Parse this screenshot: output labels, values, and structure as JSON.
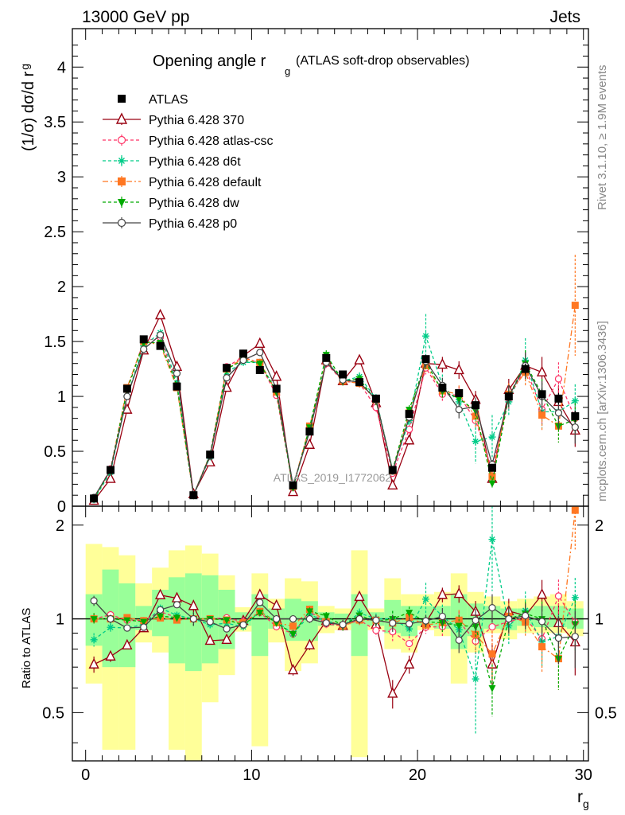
{
  "header": {
    "left": "13000 GeV pp",
    "right": "Jets"
  },
  "title": {
    "main": "Opening angle r",
    "sub": "g",
    "suffix": "(ATLAS soft-drop observables)"
  },
  "side_labels": {
    "version": "Rivet 3.1.10, ≥ 1.9M events",
    "site": "mcplots.cern.ch [arXiv:1306.3436]"
  },
  "watermark": "ATLAS_2019_I1772062",
  "ylabel_main": "(1/σ) dσ/d r",
  "ylabel_main_sub": "g",
  "ylabel_ratio": "Ratio to ATLAS",
  "xlabel": "r",
  "xlabel_sub": "g",
  "colors": {
    "yellow_band": "#ffff99",
    "green_band": "#99ff99"
  },
  "chart_data": {
    "type": "line",
    "x": [
      0.5,
      1.5,
      2.5,
      3.5,
      4.5,
      5.5,
      6.5,
      7.5,
      8.5,
      9.5,
      10.5,
      11.5,
      12.5,
      13.5,
      14.5,
      15.5,
      16.5,
      17.5,
      18.5,
      19.5,
      20.5,
      21.5,
      22.5,
      23.5,
      24.5,
      25.5,
      26.5,
      27.5,
      28.5,
      29.5
    ],
    "xlim": [
      -0.8,
      30.3
    ],
    "main_ylim": [
      0,
      4.35
    ],
    "ratio_ylim": [
      0.35,
      2.3
    ],
    "x_ticks": [
      0,
      10,
      20,
      30
    ],
    "main_y_ticks": [
      0,
      0.5,
      1,
      1.5,
      2,
      2.5,
      3,
      3.5,
      4
    ],
    "main_y_tick_labels": [
      "0",
      "0.5",
      "1",
      "1.5",
      "2",
      "2.5",
      "3",
      "3.5",
      "4"
    ],
    "ratio_y_ticks": [
      0.5,
      1,
      2
    ],
    "ratio_y_tick_labels": [
      "0.5",
      "1",
      "2"
    ],
    "ratio_band_yellow": [
      [
        0.62,
        1.74
      ],
      [
        0.38,
        1.7
      ],
      [
        0.38,
        1.6
      ],
      [
        0.84,
        1.3
      ],
      [
        0.78,
        1.46
      ],
      [
        0.38,
        1.66
      ],
      [
        0.32,
        1.72
      ],
      [
        0.54,
        1.62
      ],
      [
        0.66,
        1.38
      ],
      [
        0.91,
        1.09
      ],
      [
        0.39,
        1.4
      ],
      [
        0.84,
        1.16
      ],
      [
        0.68,
        1.35
      ],
      [
        0.72,
        1.32
      ],
      [
        0.9,
        1.1
      ],
      [
        0.92,
        1.08
      ],
      [
        0.36,
        1.66
      ],
      [
        0.92,
        1.08
      ],
      [
        0.8,
        1.35
      ],
      [
        0.78,
        1.2
      ],
      [
        0.92,
        1.2
      ],
      [
        0.88,
        1.22
      ],
      [
        0.62,
        1.4
      ],
      [
        0.78,
        1.22
      ],
      [
        0.9,
        1.18
      ],
      [
        0.86,
        1.14
      ],
      [
        0.9,
        1.16
      ],
      [
        0.9,
        1.18
      ],
      [
        0.9,
        1.2
      ],
      [
        0.88,
        1.14
      ]
    ],
    "ratio_band_green": [
      [
        0.82,
        1.2
      ],
      [
        0.7,
        1.44
      ],
      [
        0.7,
        1.3
      ],
      [
        0.92,
        1.1
      ],
      [
        0.88,
        1.24
      ],
      [
        0.72,
        1.36
      ],
      [
        0.68,
        1.4
      ],
      [
        0.72,
        1.38
      ],
      [
        0.8,
        1.24
      ],
      [
        0.95,
        1.05
      ],
      [
        0.76,
        1.2
      ],
      [
        0.93,
        1.08
      ],
      [
        0.85,
        1.16
      ],
      [
        0.85,
        1.14
      ],
      [
        0.95,
        1.05
      ],
      [
        0.96,
        1.04
      ],
      [
        0.76,
        1.2
      ],
      [
        0.95,
        1.05
      ],
      [
        0.9,
        1.15
      ],
      [
        0.88,
        1.1
      ],
      [
        0.95,
        1.1
      ],
      [
        0.93,
        1.1
      ],
      [
        0.8,
        1.2
      ],
      [
        0.88,
        1.12
      ],
      [
        0.93,
        1.1
      ],
      [
        0.92,
        1.08
      ],
      [
        0.95,
        1.08
      ],
      [
        0.94,
        1.1
      ],
      [
        0.94,
        1.1
      ],
      [
        0.93,
        1.08
      ]
    ],
    "data_series": {
      "name": "ATLAS",
      "color": "#000000",
      "marker": "square",
      "values": [
        0.07,
        0.33,
        1.07,
        1.52,
        1.46,
        1.09,
        0.1,
        0.47,
        1.26,
        1.39,
        1.24,
        1.07,
        0.19,
        0.68,
        1.35,
        1.2,
        1.13,
        0.98,
        0.33,
        0.84,
        1.34,
        1.08,
        1.03,
        0.92,
        0.35,
        1.0,
        1.25,
        1.02,
        0.98,
        0.82
      ],
      "errors": [
        0.005,
        0.01,
        0.02,
        0.03,
        0.03,
        0.02,
        0.005,
        0.01,
        0.03,
        0.03,
        0.03,
        0.02,
        0.005,
        0.02,
        0.03,
        0.02,
        0.02,
        0.02,
        0.01,
        0.02,
        0.03,
        0.03,
        0.03,
        0.03,
        0.02,
        0.04,
        0.05,
        0.05,
        0.05,
        0.05
      ]
    },
    "series": [
      {
        "name": "Pythia 6.428 370",
        "color": "#990011",
        "dash": "",
        "marker": "triangle-open",
        "values": [
          0.05,
          0.25,
          0.88,
          1.42,
          1.74,
          1.27,
          0.11,
          0.4,
          1.08,
          1.37,
          1.48,
          1.18,
          0.13,
          0.56,
          1.33,
          1.14,
          1.33,
          0.94,
          0.19,
          0.6,
          1.3,
          1.29,
          1.24,
          0.97,
          0.25,
          1.06,
          1.28,
          1.22,
          0.95,
          0.69
        ],
        "errors": [
          0.003,
          0.01,
          0.02,
          0.03,
          0.03,
          0.03,
          0.005,
          0.01,
          0.02,
          0.03,
          0.03,
          0.03,
          0.005,
          0.02,
          0.04,
          0.04,
          0.04,
          0.04,
          0.02,
          0.04,
          0.06,
          0.07,
          0.08,
          0.08,
          0.04,
          0.1,
          0.12,
          0.14,
          0.15,
          0.15
        ]
      },
      {
        "name": "Pythia 6.428 atlas-csc",
        "color": "#ff3366",
        "dash": "4,3",
        "marker": "circle-open",
        "values": [
          0.07,
          0.34,
          1.06,
          1.5,
          1.54,
          1.1,
          0.1,
          0.47,
          1.27,
          1.36,
          1.3,
          1.01,
          0.17,
          0.72,
          1.3,
          1.14,
          1.12,
          0.9,
          0.3,
          0.7,
          1.26,
          1.02,
          1.01,
          0.78,
          0.33,
          0.98,
          1.26,
          0.88,
          1.16,
          0.8
        ],
        "errors": [
          0.003,
          0.01,
          0.02,
          0.03,
          0.03,
          0.03,
          0.005,
          0.01,
          0.02,
          0.03,
          0.03,
          0.03,
          0.005,
          0.02,
          0.04,
          0.04,
          0.04,
          0.04,
          0.02,
          0.04,
          0.06,
          0.07,
          0.08,
          0.08,
          0.04,
          0.1,
          0.12,
          0.14,
          0.15,
          0.15
        ]
      },
      {
        "name": "Pythia 6.428 d6t",
        "color": "#00cc88",
        "dash": "4,3",
        "marker": "star",
        "values": [
          0.06,
          0.31,
          1.0,
          1.46,
          1.58,
          1.12,
          0.1,
          0.45,
          1.22,
          1.31,
          1.31,
          1.05,
          0.17,
          0.7,
          1.33,
          1.14,
          1.18,
          0.98,
          0.33,
          0.78,
          1.55,
          1.1,
          0.95,
          0.59,
          0.63,
          0.95,
          1.33,
          0.86,
          0.86,
          0.96
        ],
        "errors": [
          0.003,
          0.01,
          0.02,
          0.03,
          0.03,
          0.03,
          0.005,
          0.01,
          0.02,
          0.03,
          0.03,
          0.03,
          0.005,
          0.02,
          0.04,
          0.04,
          0.04,
          0.04,
          0.02,
          0.04,
          0.2,
          0.1,
          0.1,
          0.2,
          0.2,
          0.12,
          0.2,
          0.15,
          0.15,
          0.15
        ]
      },
      {
        "name": "Pythia 6.428 default",
        "color": "#ff7722",
        "dash": "7,3,2,3",
        "marker": "square",
        "values": [
          0.07,
          0.33,
          1.08,
          1.5,
          1.47,
          1.08,
          0.1,
          0.47,
          1.25,
          1.35,
          1.31,
          1.04,
          0.18,
          0.73,
          1.32,
          1.14,
          1.12,
          0.97,
          0.32,
          0.85,
          1.28,
          1.05,
          1.02,
          0.82,
          0.27,
          1.02,
          1.22,
          0.83,
          0.73,
          1.83
        ],
        "errors": [
          0.003,
          0.01,
          0.02,
          0.03,
          0.03,
          0.03,
          0.005,
          0.01,
          0.02,
          0.03,
          0.03,
          0.03,
          0.005,
          0.02,
          0.04,
          0.04,
          0.04,
          0.04,
          0.02,
          0.04,
          0.06,
          0.07,
          0.08,
          0.1,
          0.05,
          0.1,
          0.12,
          0.14,
          0.15,
          0.46
        ]
      },
      {
        "name": "Pythia 6.428 dw",
        "color": "#00aa00",
        "dash": "4,3",
        "marker": "triangle-down",
        "values": [
          0.07,
          0.33,
          1.06,
          1.49,
          1.49,
          1.1,
          0.1,
          0.47,
          1.25,
          1.33,
          1.3,
          1.04,
          0.17,
          0.72,
          1.38,
          1.14,
          1.16,
          0.96,
          0.33,
          0.88,
          1.31,
          1.05,
          0.98,
          0.87,
          0.21,
          1.0,
          1.3,
          1.02,
          0.73,
          0.79
        ],
        "errors": [
          0.003,
          0.01,
          0.02,
          0.03,
          0.03,
          0.03,
          0.005,
          0.01,
          0.02,
          0.03,
          0.03,
          0.03,
          0.005,
          0.02,
          0.04,
          0.04,
          0.04,
          0.04,
          0.02,
          0.04,
          0.06,
          0.07,
          0.08,
          0.08,
          0.04,
          0.1,
          0.12,
          0.14,
          0.15,
          0.15
        ]
      },
      {
        "name": "Pythia 6.428 p0",
        "color": "#444444",
        "dash": "",
        "marker": "circle-open",
        "values": [
          0.08,
          0.33,
          1.0,
          1.43,
          1.56,
          1.21,
          0.1,
          0.46,
          1.17,
          1.33,
          1.4,
          1.07,
          0.19,
          0.68,
          1.31,
          1.15,
          1.13,
          0.97,
          0.32,
          0.81,
          1.32,
          1.1,
          0.88,
          0.91,
          0.38,
          1.0,
          1.28,
          1.0,
          0.85,
          0.72
        ],
        "errors": [
          0.003,
          0.01,
          0.02,
          0.03,
          0.03,
          0.03,
          0.005,
          0.01,
          0.02,
          0.03,
          0.03,
          0.03,
          0.005,
          0.02,
          0.04,
          0.04,
          0.04,
          0.04,
          0.02,
          0.04,
          0.06,
          0.07,
          0.08,
          0.08,
          0.04,
          0.1,
          0.12,
          0.14,
          0.15,
          0.15
        ]
      }
    ]
  }
}
